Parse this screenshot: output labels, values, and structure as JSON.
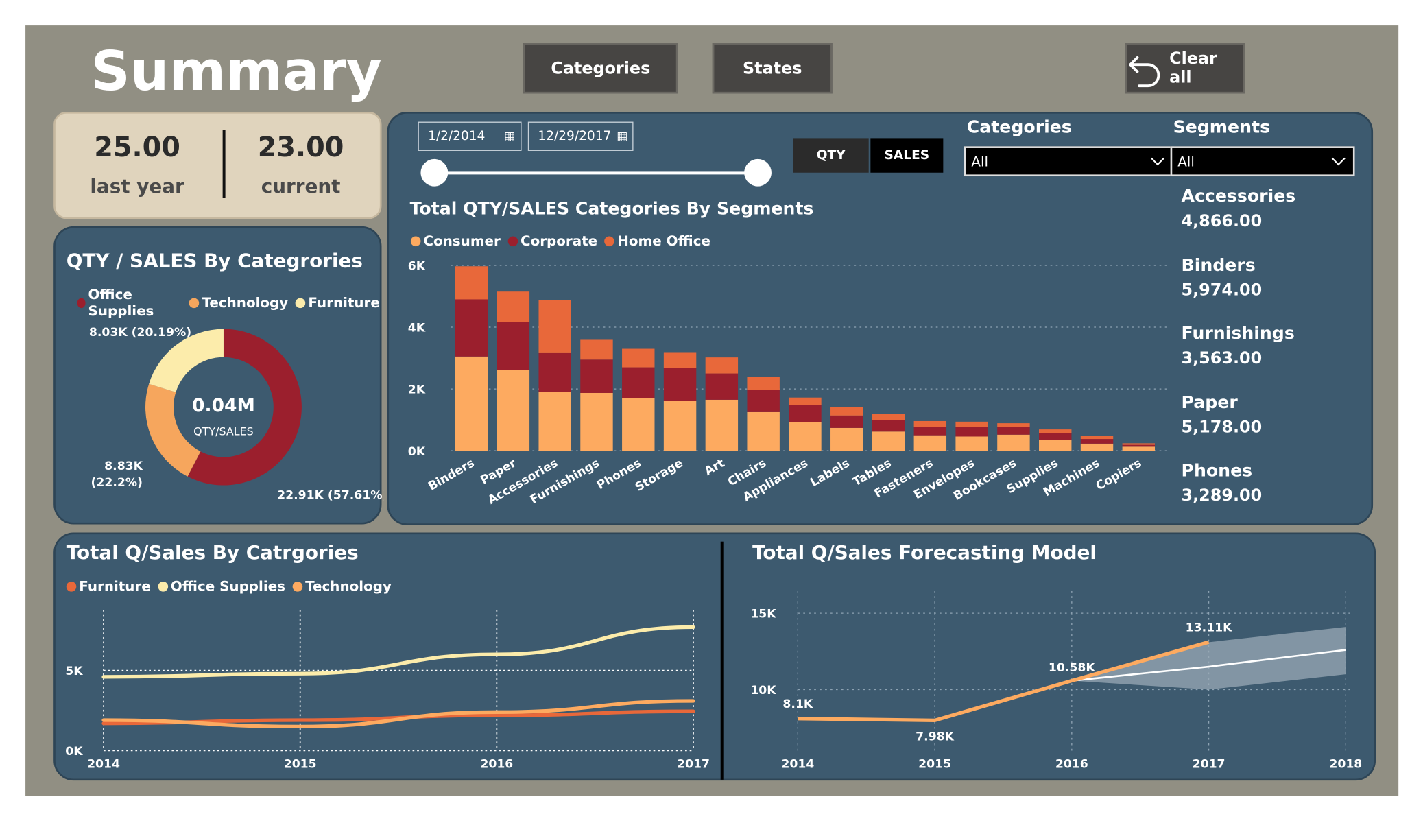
{
  "page_title": "Summary",
  "nav": {
    "categories_label": "Categories",
    "states_label": "States",
    "clear_all_label": "Clear all"
  },
  "kpi": {
    "last_year_value": "25.00",
    "last_year_label": "last year",
    "current_value": "23.00",
    "current_label": "current"
  },
  "donut_panel": {
    "title": "QTY / SALES By Categrories",
    "legend": [
      {
        "name": "Office Supplies",
        "color": "#9b1f2d"
      },
      {
        "name": "Technology",
        "color": "#f6a65d"
      },
      {
        "name": "Furniture",
        "color": "#fcecab"
      }
    ],
    "center_value": "0.04M",
    "center_label": "QTY/SALES",
    "labels": {
      "furniture": "8.03K (20.19%)",
      "technology_value": "8.83K",
      "technology_pct": "(22.2%)",
      "office": "22.91K (57.61%)"
    }
  },
  "filters": {
    "start_date": "1/2/2014",
    "end_date": "12/29/2017",
    "toggle_qty": "QTY",
    "toggle_sales": "SALES",
    "categories_label": "Categories",
    "categories_value": "All",
    "segments_label": "Segments",
    "segments_value": "All"
  },
  "bar_panel": {
    "title": "Total QTY/SALES Categories By Segments",
    "legend": [
      {
        "name": "Consumer",
        "color": "#fdaa60"
      },
      {
        "name": "Corporate",
        "color": "#9b1f2d"
      },
      {
        "name": "Home Office",
        "color": "#e8683a"
      }
    ]
  },
  "subcategory_list": [
    {
      "label": "Accessories",
      "value": "4,866.00"
    },
    {
      "label": "Binders",
      "value": "5,974.00"
    },
    {
      "label": "Furnishings",
      "value": "3,563.00"
    },
    {
      "label": "Paper",
      "value": "5,178.00"
    },
    {
      "label": "Phones",
      "value": "3,289.00"
    }
  ],
  "line_panel": {
    "title": "Total Q/Sales By Catrgories",
    "legend": [
      {
        "name": "Furniture",
        "color": "#e8683a"
      },
      {
        "name": "Office Supplies",
        "color": "#fcecab"
      },
      {
        "name": "Technology",
        "color": "#fdaa60"
      }
    ]
  },
  "forecast_panel": {
    "title": "Total Q/Sales Forecasting Model"
  },
  "chart_data": [
    {
      "type": "donut",
      "title": "QTY / SALES By Categrories",
      "categories": [
        "Office Supplies",
        "Technology",
        "Furniture"
      ],
      "values": [
        22.91,
        8.83,
        8.03
      ],
      "unit": "K",
      "percentages": [
        57.61,
        22.2,
        20.19
      ],
      "colors": [
        "#9b1f2d",
        "#f6a65d",
        "#fcecab"
      ]
    },
    {
      "type": "bar",
      "stacked": true,
      "title": "Total QTY/SALES Categories By Segments",
      "categories": [
        "Binders",
        "Paper",
        "Accessories",
        "Furnishings",
        "Phones",
        "Storage",
        "Art",
        "Chairs",
        "Appliances",
        "Labels",
        "Tables",
        "Fasteners",
        "Envelopes",
        "Bookcases",
        "Supplies",
        "Machines",
        "Copiers"
      ],
      "series": [
        {
          "name": "Consumer",
          "color": "#fdaa60",
          "values": [
            3050,
            2620,
            1900,
            1870,
            1700,
            1620,
            1650,
            1250,
            920,
            740,
            620,
            500,
            460,
            520,
            360,
            230,
            130
          ]
        },
        {
          "name": "Corporate",
          "color": "#9b1f2d",
          "values": [
            1850,
            1550,
            1280,
            1080,
            1000,
            1050,
            850,
            730,
            550,
            400,
            380,
            260,
            310,
            260,
            220,
            150,
            60
          ]
        },
        {
          "name": "Home Office",
          "color": "#e8683a",
          "values": [
            1070,
            980,
            1700,
            640,
            600,
            520,
            520,
            400,
            250,
            280,
            200,
            200,
            170,
            110,
            110,
            100,
            50
          ]
        }
      ],
      "yticks": [
        "0K",
        "2K",
        "4K",
        "6K"
      ],
      "ylim": [
        0,
        6000
      ]
    },
    {
      "type": "line",
      "title": "Total Q/Sales By Catrgories",
      "x": [
        "2014",
        "2015",
        "2016",
        "2017"
      ],
      "series": [
        {
          "name": "Furniture",
          "color": "#e8683a",
          "values": [
            1700,
            1900,
            2200,
            2450
          ]
        },
        {
          "name": "Office Supplies",
          "color": "#fcecab",
          "values": [
            4600,
            4800,
            6000,
            7700
          ]
        },
        {
          "name": "Technology",
          "color": "#fdaa60",
          "values": [
            1900,
            1500,
            2400,
            3100
          ]
        }
      ],
      "yticks": [
        "0K",
        "5K"
      ],
      "ylim": [
        0,
        8500
      ]
    },
    {
      "type": "line",
      "title": "Total Q/Sales Forecasting Model",
      "x": [
        "2014",
        "2015",
        "2016",
        "2017",
        "2018"
      ],
      "actual": [
        8100,
        7980,
        10580,
        13110
      ],
      "actual_labels": [
        "8.1K",
        "7.98K",
        "10.58K",
        "13.11K"
      ],
      "forecast": {
        "x": [
          2016,
          2017,
          2018
        ],
        "mid": [
          10580,
          11500,
          12600
        ],
        "upper": [
          10580,
          13100,
          14100
        ],
        "lower": [
          10580,
          10000,
          11000
        ]
      },
      "yticks": [
        "10K",
        "15K"
      ],
      "ylim": [
        6000,
        16000
      ]
    }
  ]
}
